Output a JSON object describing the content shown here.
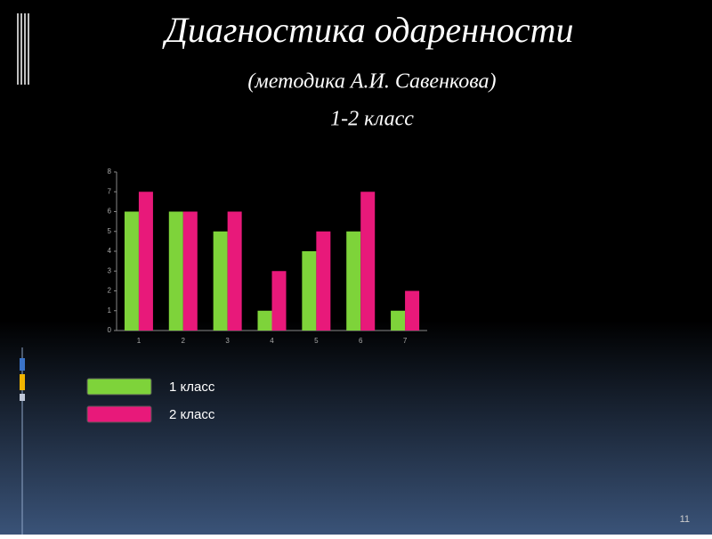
{
  "chart_data": {
    "type": "bar",
    "title": "Диагностика одаренности",
    "subtitle": "(методика А.И. Савенкова)",
    "subtitle2": "1-2 класс",
    "categories": [
      "1",
      "2",
      "3",
      "4",
      "5",
      "6",
      "7"
    ],
    "series": [
      {
        "name": "1 класс",
        "color": "#7ed33a",
        "values": [
          6,
          6,
          5,
          1,
          4,
          5,
          1
        ]
      },
      {
        "name": "2 класс",
        "color": "#e8197a",
        "values": [
          7,
          6,
          6,
          3,
          5,
          7,
          2
        ]
      }
    ],
    "ylim": [
      0,
      8
    ],
    "yticks": [
      0,
      1,
      2,
      3,
      4,
      5,
      6,
      7,
      8
    ],
    "grid": false
  },
  "page_number": "11"
}
